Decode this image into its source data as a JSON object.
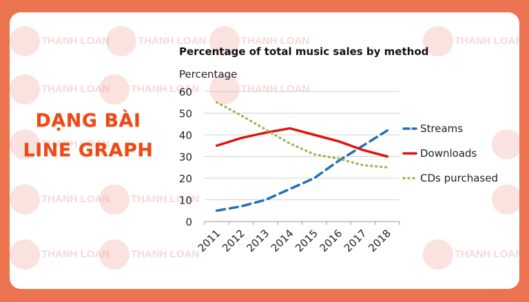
{
  "banner": {
    "line1": "DẠNG BÀI",
    "line2": "LINE GRAPH",
    "color": "#f04a14"
  },
  "watermark": "IELTS THANH LOAN",
  "chart_data": {
    "type": "line",
    "title": "Percentage of total music sales by method",
    "ylabel": "Percentage",
    "xlabel": "",
    "ylim": [
      0,
      60
    ],
    "yticks": [
      0,
      10,
      20,
      30,
      40,
      50,
      60
    ],
    "grid": true,
    "legend": "right",
    "categories": [
      "2011",
      "2012",
      "2013",
      "2014",
      "2015",
      "2016",
      "2017",
      "2018"
    ],
    "series": [
      {
        "name": "Streams",
        "color": "#1f6fb5",
        "style": "dashed",
        "values": [
          5,
          7,
          10,
          15,
          20,
          28,
          35,
          42
        ]
      },
      {
        "name": "Downloads",
        "color": "#e3120b",
        "style": "solid",
        "values": [
          35,
          38.5,
          41,
          43,
          40,
          37,
          33,
          30
        ]
      },
      {
        "name": "CDs purchased",
        "color": "#9bbb59",
        "style": "dotted",
        "values": [
          55,
          49,
          42.5,
          36,
          31,
          29,
          26,
          25
        ]
      }
    ]
  }
}
